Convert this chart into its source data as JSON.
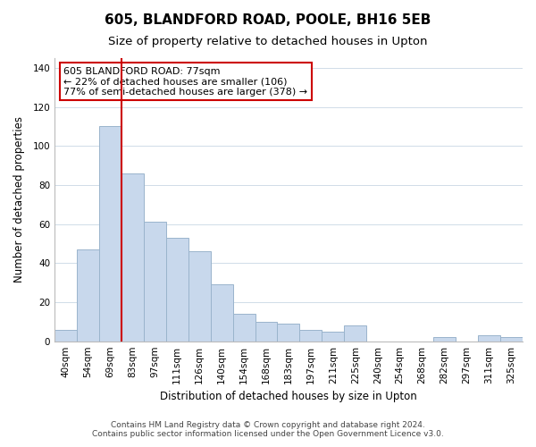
{
  "title": "605, BLANDFORD ROAD, POOLE, BH16 5EB",
  "subtitle": "Size of property relative to detached houses in Upton",
  "xlabel": "Distribution of detached houses by size in Upton",
  "ylabel": "Number of detached properties",
  "categories": [
    "40sqm",
    "54sqm",
    "69sqm",
    "83sqm",
    "97sqm",
    "111sqm",
    "126sqm",
    "140sqm",
    "154sqm",
    "168sqm",
    "183sqm",
    "197sqm",
    "211sqm",
    "225sqm",
    "240sqm",
    "254sqm",
    "268sqm",
    "282sqm",
    "297sqm",
    "311sqm",
    "325sqm"
  ],
  "values": [
    6,
    47,
    110,
    86,
    61,
    53,
    46,
    29,
    14,
    10,
    9,
    6,
    5,
    8,
    0,
    0,
    0,
    2,
    0,
    3,
    2
  ],
  "bar_color": "#c8d8ec",
  "bar_edge_color": "#9ab4cc",
  "vline_color": "#cc0000",
  "annotation_line1": "605 BLANDFORD ROAD: 77sqm",
  "annotation_line2": "← 22% of detached houses are smaller (106)",
  "annotation_line3": "77% of semi-detached houses are larger (378) →",
  "annotation_box_color": "#ffffff",
  "annotation_box_edge_color": "#cc0000",
  "ylim": [
    0,
    145
  ],
  "yticks": [
    0,
    20,
    40,
    60,
    80,
    100,
    120,
    140
  ],
  "footer1": "Contains HM Land Registry data © Crown copyright and database right 2024.",
  "footer2": "Contains public sector information licensed under the Open Government Licence v3.0.",
  "background_color": "#ffffff",
  "grid_color": "#d0dce8",
  "title_fontsize": 11,
  "subtitle_fontsize": 9.5,
  "axis_label_fontsize": 8.5,
  "tick_fontsize": 7.5,
  "annotation_fontsize": 8,
  "footer_fontsize": 6.5
}
